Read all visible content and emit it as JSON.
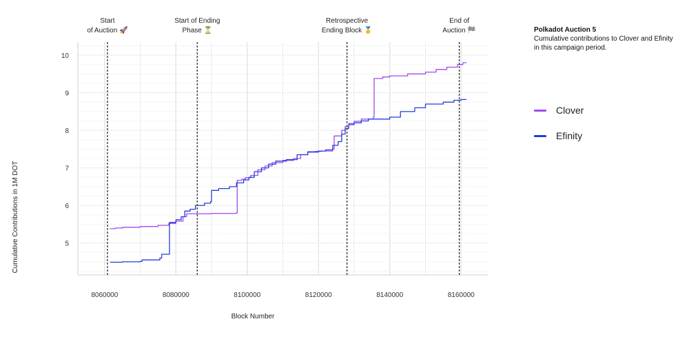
{
  "chart_data": {
    "type": "line",
    "title": "Polkadot Auction 5",
    "subtitle": "Cumulative contributions to Clover and Efinity in this campaign period.",
    "xlabel": "Block Number",
    "ylabel": "Cumulative Contributions in 1M DOT",
    "xlim": [
      8052500,
      8167500
    ],
    "ylim": [
      4.15,
      10.35
    ],
    "x_ticks": [
      8060000,
      8080000,
      8100000,
      8120000,
      8140000,
      8160000
    ],
    "y_ticks": [
      5,
      6,
      7,
      8,
      9,
      10
    ],
    "grid": true,
    "legend_position": "right",
    "annotations": [
      {
        "x": 8060800,
        "line1": "Start",
        "line2": "of Auction 🚀"
      },
      {
        "x": 8086000,
        "line1": "Start of Ending",
        "line2": "Phase ⏳"
      },
      {
        "x": 8128000,
        "line1": "Retrospective",
        "line2": "Ending Block 🥇"
      },
      {
        "x": 8159500,
        "line1": "End of",
        "line2": "Auction 🏁"
      }
    ],
    "series": [
      {
        "name": "Clover",
        "color": "#a149f5",
        "points": [
          [
            8061500,
            5.38
          ],
          [
            8063000,
            5.4
          ],
          [
            8065000,
            5.42
          ],
          [
            8070000,
            5.44
          ],
          [
            8075000,
            5.47
          ],
          [
            8078000,
            5.52
          ],
          [
            8080000,
            5.58
          ],
          [
            8082000,
            5.7
          ],
          [
            8083000,
            5.78
          ],
          [
            8090000,
            5.79
          ],
          [
            8097000,
            5.8
          ],
          [
            8097200,
            6.67
          ],
          [
            8098500,
            6.7
          ],
          [
            8099500,
            6.74
          ],
          [
            8101000,
            6.8
          ],
          [
            8103000,
            6.95
          ],
          [
            8105000,
            7.05
          ],
          [
            8107000,
            7.14
          ],
          [
            8110000,
            7.2
          ],
          [
            8113000,
            7.25
          ],
          [
            8115000,
            7.35
          ],
          [
            8117000,
            7.43
          ],
          [
            8119000,
            7.44
          ],
          [
            8121000,
            7.45
          ],
          [
            8124000,
            7.5
          ],
          [
            8124400,
            7.85
          ],
          [
            8126000,
            7.85
          ],
          [
            8126500,
            8.0
          ],
          [
            8127500,
            8.1
          ],
          [
            8128500,
            8.18
          ],
          [
            8130000,
            8.24
          ],
          [
            8132000,
            8.3
          ],
          [
            8135400,
            8.36
          ],
          [
            8135600,
            9.38
          ],
          [
            8138000,
            9.42
          ],
          [
            8140000,
            9.45
          ],
          [
            8145000,
            9.5
          ],
          [
            8150000,
            9.55
          ],
          [
            8153000,
            9.62
          ],
          [
            8156000,
            9.68
          ],
          [
            8159000,
            9.75
          ],
          [
            8160500,
            9.8
          ],
          [
            8161500,
            9.8
          ]
        ]
      },
      {
        "name": "Efinity",
        "color": "#1f3fd9",
        "points": [
          [
            8061500,
            4.49
          ],
          [
            8065000,
            4.5
          ],
          [
            8070000,
            4.51
          ],
          [
            8070500,
            4.55
          ],
          [
            8075500,
            4.6
          ],
          [
            8076000,
            4.7
          ],
          [
            8078000,
            4.7
          ],
          [
            8078200,
            5.55
          ],
          [
            8080000,
            5.62
          ],
          [
            8081500,
            5.7
          ],
          [
            8082500,
            5.85
          ],
          [
            8084000,
            5.9
          ],
          [
            8085500,
            6.0
          ],
          [
            8088000,
            6.06
          ],
          [
            8089700,
            6.1
          ],
          [
            8090000,
            6.4
          ],
          [
            8092000,
            6.45
          ],
          [
            8095000,
            6.5
          ],
          [
            8097000,
            6.6
          ],
          [
            8099000,
            6.68
          ],
          [
            8100500,
            6.75
          ],
          [
            8102000,
            6.9
          ],
          [
            8104000,
            7.0
          ],
          [
            8106000,
            7.1
          ],
          [
            8108000,
            7.18
          ],
          [
            8111000,
            7.22
          ],
          [
            8114000,
            7.35
          ],
          [
            8117000,
            7.42
          ],
          [
            8120000,
            7.45
          ],
          [
            8122000,
            7.48
          ],
          [
            8124000,
            7.6
          ],
          [
            8125500,
            7.7
          ],
          [
            8126500,
            7.9
          ],
          [
            8127500,
            8.05
          ],
          [
            8128500,
            8.15
          ],
          [
            8130000,
            8.2
          ],
          [
            8132000,
            8.25
          ],
          [
            8134000,
            8.3
          ],
          [
            8140000,
            8.35
          ],
          [
            8143000,
            8.5
          ],
          [
            8147000,
            8.6
          ],
          [
            8150000,
            8.7
          ],
          [
            8155000,
            8.75
          ],
          [
            8158000,
            8.8
          ],
          [
            8160000,
            8.82
          ],
          [
            8161500,
            8.82
          ]
        ]
      }
    ]
  }
}
